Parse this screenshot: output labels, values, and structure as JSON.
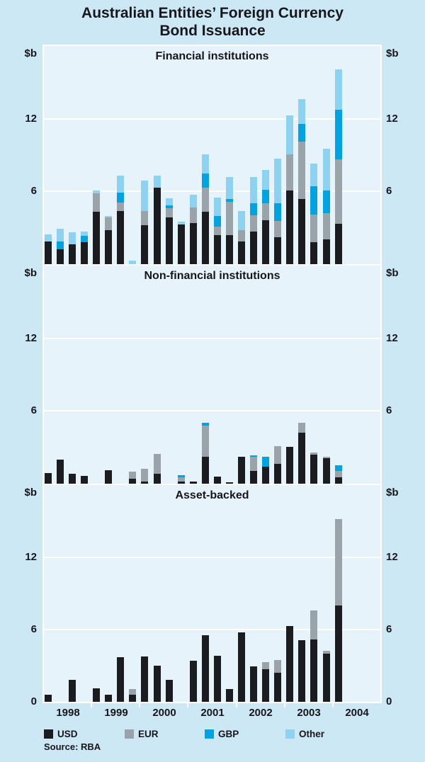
{
  "title_lines": [
    "Australian Entities’ Foreign Currency",
    "Bond Issuance"
  ],
  "source": "Source: RBA",
  "colors": {
    "usd": "#1b1c20",
    "eur": "#9aa2aa",
    "gbp": "#00a3e2",
    "other": "#8ed2f2",
    "background": "#cde8f5",
    "plot_background": "#e6f3fa",
    "gridline": "#ffffff",
    "text": "#16161c"
  },
  "y_axis": {
    "unit_label": "$b",
    "gridline_labels": [
      "12",
      "6"
    ],
    "zero_label": "0",
    "max": 18
  },
  "x_axis": {
    "years": [
      "1998",
      "1999",
      "2000",
      "2001",
      "2002",
      "2003",
      "2004"
    ]
  },
  "legend": [
    {
      "label": "USD",
      "color_key": "usd"
    },
    {
      "label": "EUR",
      "color_key": "eur"
    },
    {
      "label": "GBP",
      "color_key": "gbp"
    },
    {
      "label": "Other",
      "color_key": "other"
    }
  ],
  "chart_data": [
    {
      "type": "bar",
      "stacked": true,
      "title": "Financial institutions",
      "ylabel": "$b",
      "ylim": [
        0,
        18
      ],
      "gridlines": [
        6,
        12
      ],
      "categories": [
        "1998 Q1",
        "1998 Q2",
        "1998 Q3",
        "1998 Q4",
        "1999 Q1",
        "1999 Q2",
        "1999 Q3",
        "1999 Q4",
        "2000 Q1",
        "2000 Q2",
        "2000 Q3",
        "2000 Q4",
        "2001 Q1",
        "2001 Q2",
        "2001 Q3",
        "2001 Q4",
        "2002 Q1",
        "2002 Q2",
        "2002 Q3",
        "2002 Q4",
        "2003 Q1",
        "2003 Q2",
        "2003 Q3",
        "2003 Q4",
        "2004 Q1"
      ],
      "series": [
        {
          "name": "USD",
          "values": [
            1.9,
            1.2,
            1.65,
            1.8,
            4.3,
            2.8,
            4.4,
            0,
            3.2,
            6.3,
            3.85,
            3.3,
            3.4,
            4.3,
            2.4,
            2.4,
            1.9,
            2.7,
            3.6,
            2.2,
            6.05,
            5.35,
            1.8,
            2.05,
            3.35
          ]
        },
        {
          "name": "EUR",
          "values": [
            0,
            0,
            0,
            0,
            1.55,
            1.05,
            0.7,
            0,
            1.2,
            0,
            0.75,
            0,
            1.3,
            2.0,
            0.7,
            2.75,
            0.9,
            1.35,
            1.45,
            1.35,
            3.0,
            4.75,
            2.3,
            2.15,
            5.3
          ]
        },
        {
          "name": "GBP",
          "values": [
            0,
            0.7,
            0,
            0.55,
            0,
            0,
            0.8,
            0,
            0,
            0,
            0.25,
            0,
            0,
            1.2,
            0.9,
            0.25,
            0,
            1.0,
            1.1,
            1.5,
            0,
            1.45,
            2.35,
            1.9,
            4.1
          ]
        },
        {
          "name": "Other",
          "values": [
            0.55,
            1.0,
            1.0,
            0.35,
            0.2,
            0.15,
            1.4,
            0.3,
            2.5,
            1.0,
            0.6,
            0.2,
            1.0,
            1.55,
            1.5,
            1.8,
            1.6,
            2.15,
            1.65,
            3.65,
            3.2,
            2.05,
            1.85,
            3.4,
            3.35
          ]
        }
      ]
    },
    {
      "type": "bar",
      "stacked": true,
      "title": "Non-financial institutions",
      "ylabel": "$b",
      "ylim": [
        0,
        18
      ],
      "gridlines": [
        6,
        12
      ],
      "categories": [
        "1998 Q1",
        "1998 Q2",
        "1998 Q3",
        "1998 Q4",
        "1999 Q1",
        "1999 Q2",
        "1999 Q3",
        "1999 Q4",
        "2000 Q1",
        "2000 Q2",
        "2000 Q3",
        "2000 Q4",
        "2001 Q1",
        "2001 Q2",
        "2001 Q3",
        "2001 Q4",
        "2002 Q1",
        "2002 Q2",
        "2002 Q3",
        "2002 Q4",
        "2003 Q1",
        "2003 Q2",
        "2003 Q3",
        "2003 Q4",
        "2004 Q1"
      ],
      "series": [
        {
          "name": "USD",
          "values": [
            0.85,
            2.0,
            0.8,
            0.65,
            0,
            1.1,
            0,
            0.4,
            0.15,
            0.8,
            0,
            0.15,
            0.15,
            2.25,
            0.6,
            0.1,
            2.25,
            1.05,
            1.4,
            1.65,
            3.05,
            4.2,
            2.4,
            2.1,
            0.5
          ]
        },
        {
          "name": "EUR",
          "values": [
            0,
            0,
            0,
            0,
            0,
            0,
            0,
            0.6,
            1.05,
            1.65,
            0,
            0.35,
            0,
            2.55,
            0,
            0,
            0,
            1.15,
            0,
            1.45,
            0,
            0.85,
            0.2,
            0.15,
            0.55
          ]
        },
        {
          "name": "GBP",
          "values": [
            0,
            0,
            0,
            0,
            0,
            0,
            0,
            0,
            0,
            0,
            0,
            0.2,
            0,
            0.25,
            0,
            0,
            0,
            0.15,
            0.8,
            0,
            0,
            0,
            0,
            0,
            0.45
          ]
        },
        {
          "name": "Other",
          "values": [
            0,
            0,
            0,
            0,
            0,
            0,
            0,
            0,
            0,
            0,
            0,
            0,
            0,
            0,
            0,
            0,
            0,
            0,
            0,
            0,
            0,
            0,
            0,
            0,
            0
          ]
        }
      ]
    },
    {
      "type": "bar",
      "stacked": true,
      "title": "Asset-backed",
      "ylabel": "$b",
      "ylim": [
        0,
        18
      ],
      "gridlines": [
        6,
        12
      ],
      "categories": [
        "1998 Q1",
        "1998 Q2",
        "1998 Q3",
        "1998 Q4",
        "1999 Q1",
        "1999 Q2",
        "1999 Q3",
        "1999 Q4",
        "2000 Q1",
        "2000 Q2",
        "2000 Q3",
        "2000 Q4",
        "2001 Q1",
        "2001 Q2",
        "2001 Q3",
        "2001 Q4",
        "2002 Q1",
        "2002 Q2",
        "2002 Q3",
        "2002 Q4",
        "2003 Q1",
        "2003 Q2",
        "2003 Q3",
        "2003 Q4",
        "2004 Q1"
      ],
      "series": [
        {
          "name": "USD",
          "values": [
            0.6,
            0,
            1.85,
            0,
            1.1,
            0.6,
            3.7,
            0.6,
            3.75,
            3.0,
            1.85,
            0,
            3.4,
            5.55,
            3.8,
            1.05,
            5.75,
            2.95,
            2.7,
            2.4,
            6.3,
            5.1,
            5.15,
            4.0,
            8.0
          ]
        },
        {
          "name": "EUR",
          "values": [
            0,
            0,
            0,
            0,
            0,
            0,
            0,
            0.45,
            0,
            0,
            0,
            0,
            0,
            0,
            0,
            0,
            0,
            0,
            0.6,
            1.1,
            0,
            0,
            2.45,
            0.25,
            7.2
          ]
        },
        {
          "name": "GBP",
          "values": [
            0,
            0,
            0,
            0,
            0,
            0,
            0,
            0,
            0,
            0,
            0,
            0,
            0,
            0,
            0,
            0,
            0,
            0,
            0,
            0,
            0,
            0,
            0,
            0,
            0
          ]
        },
        {
          "name": "Other",
          "values": [
            0,
            0,
            0,
            0,
            0,
            0,
            0,
            0,
            0,
            0,
            0,
            0,
            0,
            0,
            0,
            0,
            0,
            0,
            0,
            0,
            0,
            0,
            0,
            0,
            0
          ]
        }
      ]
    }
  ]
}
